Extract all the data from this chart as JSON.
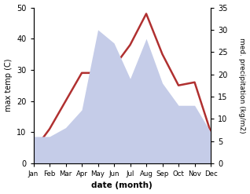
{
  "months": [
    "Jan",
    "Feb",
    "Mar",
    "Apr",
    "May",
    "Jun",
    "Jul",
    "Aug",
    "Sep",
    "Oct",
    "Nov",
    "Dec"
  ],
  "temperature": [
    4,
    11,
    20,
    29,
    29,
    31,
    38,
    48,
    35,
    25,
    26,
    10
  ],
  "precipitation": [
    6,
    6,
    8,
    12,
    30,
    27,
    19,
    28,
    18,
    13,
    13,
    7
  ],
  "temp_color": "#b03030",
  "precip_fill_color": "#c5cce8",
  "ylabel_left": "max temp (C)",
  "ylabel_right": "med. precipitation (kg/m2)",
  "xlabel": "date (month)",
  "ylim_left": [
    0,
    50
  ],
  "ylim_right": [
    0,
    35
  ],
  "title": ""
}
